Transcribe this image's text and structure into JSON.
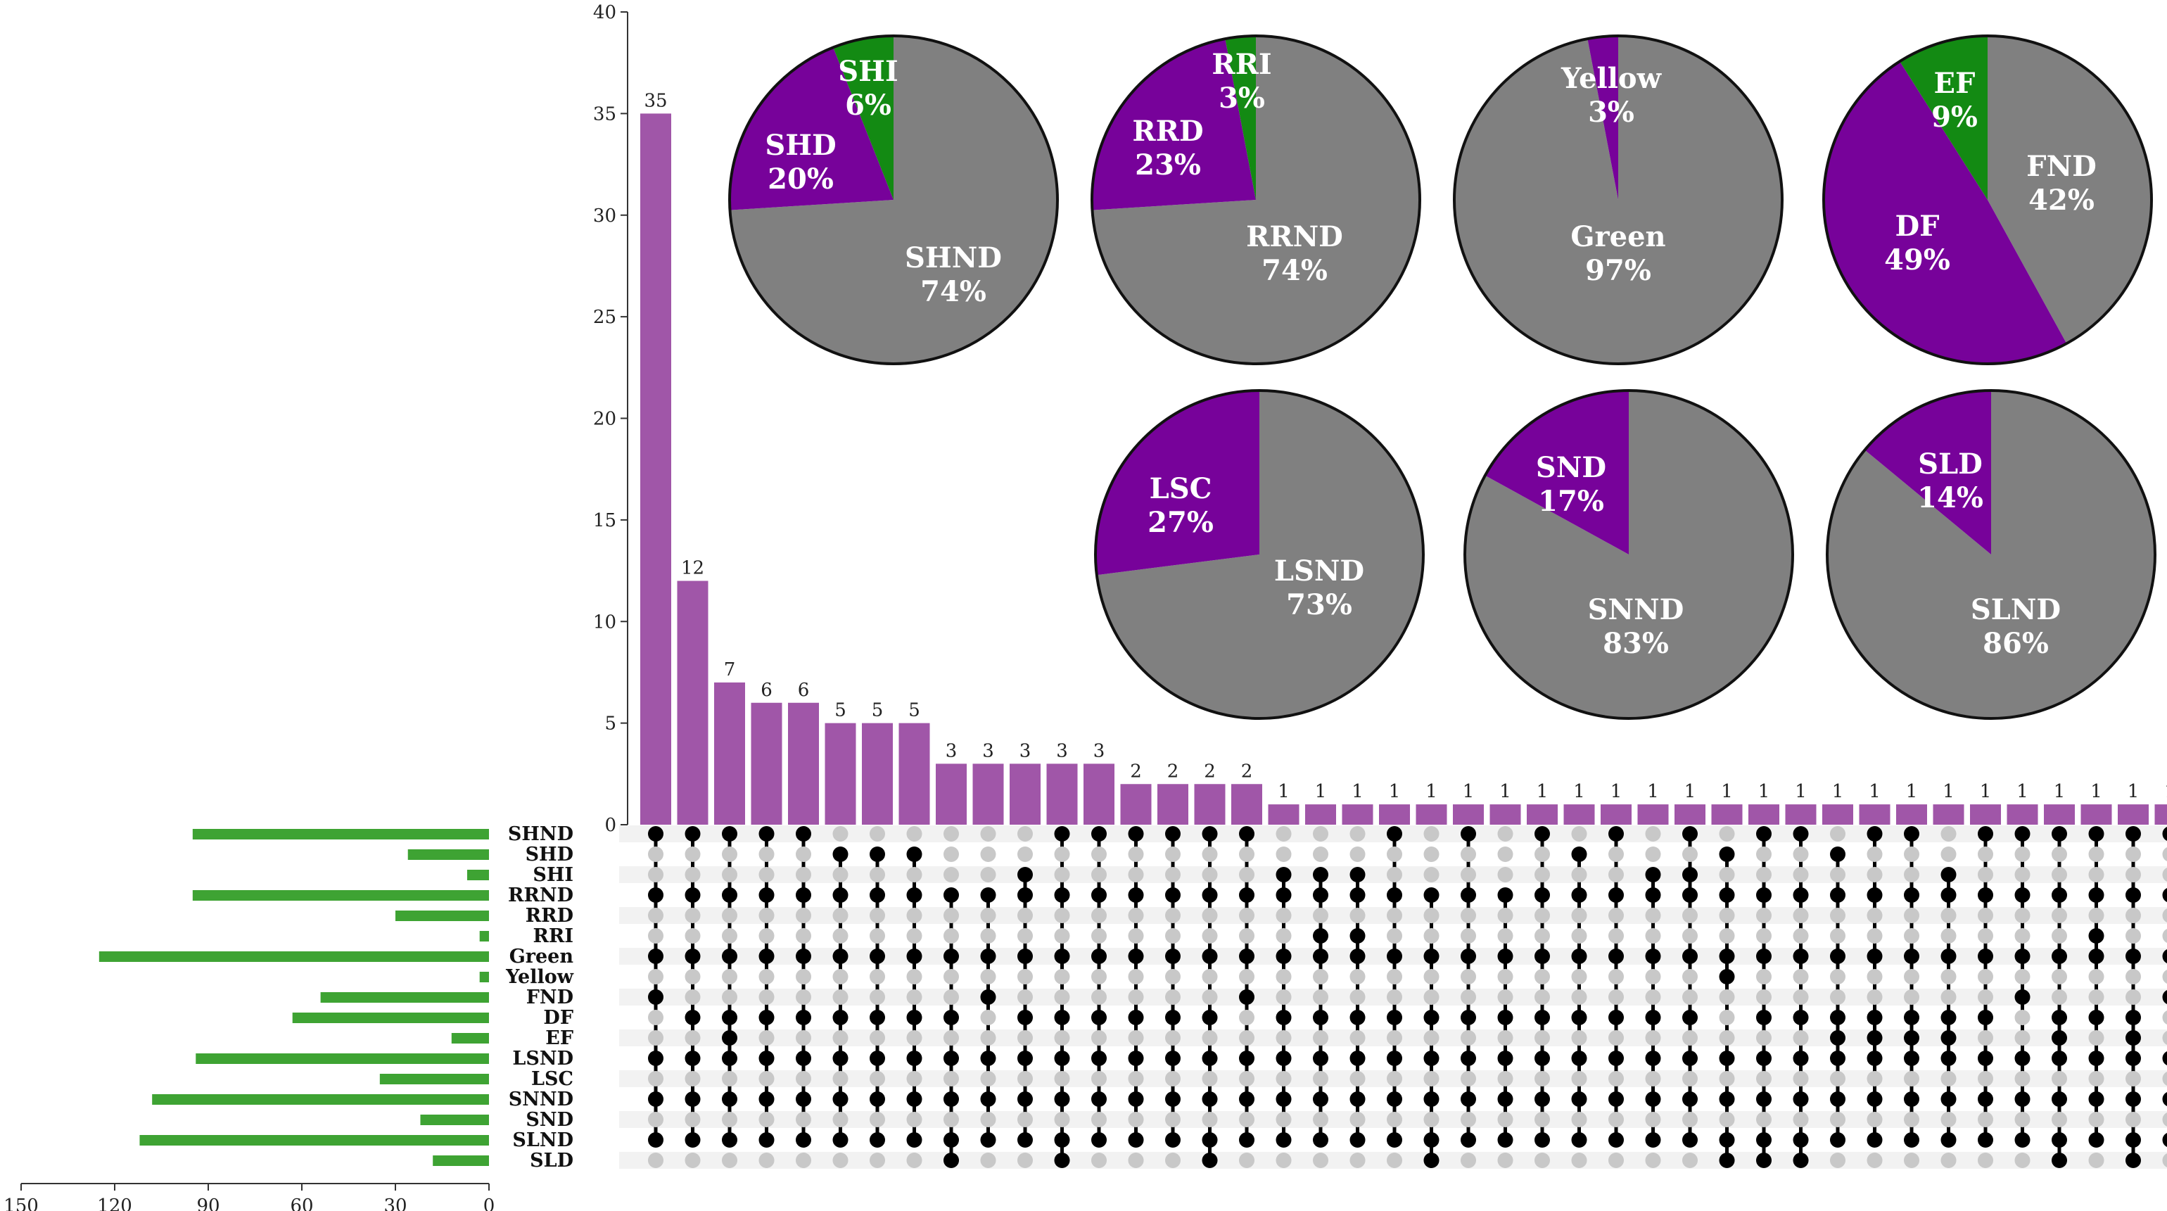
{
  "chart_data": {
    "type": "upset",
    "colors": {
      "bar": "#a056a8",
      "set_bar": "#3ea333",
      "dot_on": "#000000",
      "dot_off": "#c8c8c8",
      "stripe": "#f2f2f2",
      "pie_gray": "#808080",
      "pie_purple": "#77029a",
      "pie_green": "#138a13"
    },
    "intersections_axis": {
      "ylim": [
        0,
        40
      ],
      "ticks": [
        0,
        5,
        10,
        15,
        20,
        25,
        30,
        35,
        40
      ]
    },
    "intersection_sizes": [
      35,
      12,
      7,
      6,
      6,
      5,
      5,
      5,
      3,
      3,
      3,
      3,
      3,
      2,
      2,
      2,
      2,
      1,
      1,
      1,
      1,
      1,
      1,
      1,
      1,
      1,
      1,
      1,
      1,
      1,
      1,
      1,
      1,
      1,
      1,
      1,
      1,
      1,
      1,
      1,
      1,
      1
    ],
    "sets": [
      "SHND",
      "SHD",
      "SHI",
      "RRND",
      "RRD",
      "RRI",
      "Green",
      "Yellow",
      "FND",
      "DF",
      "EF",
      "LSND",
      "LSC",
      "SNND",
      "SND",
      "SLND",
      "SLD"
    ],
    "set_sizes": [
      95,
      26,
      7,
      95,
      30,
      3,
      125,
      3,
      54,
      63,
      12,
      94,
      35,
      108,
      22,
      112,
      18
    ],
    "set_size_axis": {
      "xlim": [
        150,
        0
      ],
      "ticks": [
        150,
        120,
        90,
        60,
        30,
        0
      ]
    },
    "matrix": [
      [
        1,
        1,
        1,
        1,
        1,
        0,
        0,
        0,
        0,
        0,
        0,
        1,
        1,
        1,
        1,
        1,
        1,
        0,
        0,
        0,
        1,
        0,
        1,
        0,
        1,
        0,
        1,
        0,
        1,
        0,
        1,
        1,
        0,
        1,
        1,
        0,
        1,
        1,
        1,
        1,
        1,
        1
      ],
      [
        0,
        0,
        0,
        0,
        0,
        1,
        1,
        1,
        0,
        0,
        0,
        0,
        0,
        0,
        0,
        0,
        0,
        0,
        0,
        0,
        0,
        0,
        0,
        0,
        0,
        1,
        0,
        0,
        0,
        1,
        0,
        0,
        1,
        0,
        0,
        0,
        0,
        0,
        0,
        0,
        0,
        0
      ],
      [
        0,
        0,
        0,
        0,
        0,
        0,
        0,
        0,
        0,
        0,
        1,
        0,
        0,
        0,
        0,
        0,
        0,
        1,
        1,
        1,
        0,
        0,
        0,
        0,
        0,
        0,
        0,
        1,
        1,
        0,
        0,
        0,
        0,
        0,
        0,
        1,
        0,
        0,
        0,
        0,
        0,
        0
      ],
      [
        1,
        1,
        1,
        1,
        1,
        1,
        1,
        1,
        1,
        1,
        1,
        1,
        1,
        1,
        1,
        1,
        1,
        1,
        1,
        1,
        1,
        1,
        1,
        1,
        1,
        1,
        1,
        1,
        1,
        1,
        1,
        1,
        1,
        1,
        1,
        1,
        1,
        1,
        1,
        1,
        1,
        1
      ],
      [
        0,
        0,
        0,
        0,
        0,
        0,
        0,
        0,
        0,
        0,
        0,
        0,
        0,
        0,
        0,
        0,
        0,
        0,
        0,
        0,
        0,
        0,
        0,
        0,
        0,
        0,
        0,
        0,
        0,
        0,
        0,
        0,
        0,
        0,
        0,
        0,
        0,
        0,
        0,
        0,
        0,
        0
      ],
      [
        0,
        0,
        0,
        0,
        0,
        0,
        0,
        0,
        0,
        0,
        0,
        0,
        0,
        0,
        0,
        0,
        0,
        0,
        1,
        1,
        0,
        0,
        0,
        0,
        0,
        0,
        0,
        0,
        0,
        0,
        0,
        0,
        0,
        0,
        0,
        0,
        0,
        0,
        0,
        1,
        0,
        0
      ],
      [
        1,
        1,
        1,
        1,
        1,
        1,
        1,
        1,
        1,
        1,
        1,
        1,
        1,
        1,
        1,
        1,
        1,
        1,
        1,
        1,
        1,
        1,
        1,
        1,
        1,
        1,
        1,
        1,
        1,
        1,
        1,
        1,
        1,
        1,
        1,
        1,
        1,
        1,
        1,
        1,
        1,
        1
      ],
      [
        0,
        0,
        0,
        0,
        0,
        0,
        0,
        0,
        0,
        0,
        0,
        0,
        0,
        0,
        0,
        0,
        0,
        0,
        0,
        0,
        0,
        0,
        0,
        0,
        0,
        0,
        0,
        0,
        0,
        1,
        0,
        0,
        0,
        0,
        0,
        0,
        0,
        0,
        0,
        0,
        0,
        0
      ],
      [
        1,
        0,
        0,
        0,
        0,
        0,
        0,
        0,
        0,
        1,
        0,
        0,
        0,
        0,
        0,
        0,
        1,
        0,
        0,
        0,
        0,
        0,
        0,
        0,
        0,
        0,
        0,
        0,
        0,
        0,
        0,
        0,
        0,
        0,
        0,
        0,
        0,
        1,
        0,
        0,
        0,
        1
      ],
      [
        0,
        1,
        1,
        1,
        1,
        1,
        1,
        1,
        1,
        0,
        1,
        1,
        1,
        1,
        1,
        1,
        0,
        1,
        1,
        1,
        1,
        1,
        1,
        1,
        1,
        1,
        1,
        1,
        1,
        0,
        1,
        1,
        1,
        1,
        1,
        1,
        1,
        0,
        1,
        1,
        1,
        0
      ],
      [
        0,
        0,
        1,
        0,
        0,
        0,
        0,
        0,
        0,
        0,
        0,
        0,
        0,
        0,
        0,
        0,
        0,
        0,
        0,
        0,
        0,
        0,
        0,
        0,
        0,
        0,
        0,
        0,
        0,
        0,
        0,
        0,
        1,
        1,
        1,
        1,
        0,
        0,
        1,
        0,
        1,
        0
      ],
      [
        1,
        1,
        1,
        1,
        1,
        1,
        1,
        1,
        1,
        1,
        1,
        1,
        1,
        1,
        1,
        1,
        1,
        1,
        1,
        1,
        1,
        1,
        1,
        1,
        1,
        1,
        1,
        1,
        1,
        1,
        1,
        1,
        1,
        1,
        1,
        1,
        1,
        1,
        1,
        1,
        1,
        1
      ],
      [
        0,
        0,
        0,
        0,
        0,
        0,
        0,
        0,
        0,
        0,
        0,
        0,
        0,
        0,
        0,
        0,
        0,
        0,
        0,
        0,
        0,
        0,
        0,
        0,
        0,
        0,
        0,
        0,
        0,
        0,
        0,
        0,
        0,
        0,
        0,
        0,
        0,
        0,
        0,
        0,
        0,
        0
      ],
      [
        1,
        1,
        1,
        1,
        1,
        1,
        1,
        1,
        1,
        1,
        1,
        1,
        1,
        1,
        1,
        1,
        1,
        1,
        1,
        1,
        1,
        1,
        1,
        1,
        1,
        1,
        1,
        1,
        1,
        1,
        1,
        1,
        1,
        1,
        1,
        1,
        1,
        1,
        1,
        1,
        1,
        1
      ],
      [
        0,
        0,
        0,
        0,
        0,
        0,
        0,
        0,
        0,
        0,
        0,
        0,
        0,
        0,
        0,
        0,
        0,
        0,
        0,
        0,
        0,
        0,
        0,
        0,
        0,
        0,
        0,
        0,
        0,
        0,
        0,
        0,
        0,
        0,
        0,
        0,
        0,
        0,
        0,
        0,
        0,
        0
      ],
      [
        1,
        1,
        1,
        1,
        1,
        1,
        1,
        1,
        1,
        1,
        1,
        1,
        1,
        1,
        1,
        1,
        1,
        1,
        1,
        1,
        1,
        1,
        1,
        1,
        1,
        1,
        1,
        1,
        1,
        1,
        1,
        1,
        1,
        1,
        1,
        1,
        1,
        1,
        1,
        1,
        1,
        1
      ],
      [
        0,
        0,
        0,
        0,
        0,
        0,
        0,
        0,
        1,
        0,
        0,
        1,
        0,
        0,
        0,
        1,
        0,
        0,
        0,
        0,
        0,
        1,
        0,
        0,
        0,
        0,
        0,
        0,
        0,
        1,
        1,
        1,
        0,
        0,
        0,
        0,
        0,
        0,
        1,
        0,
        1,
        0
      ]
    ],
    "pies": [
      {
        "slices": [
          {
            "label": "SHND",
            "value": 74,
            "color": "gray",
            "pct": "74%"
          },
          {
            "label": "SHD",
            "value": 20,
            "color": "purple",
            "pct": "20%"
          },
          {
            "label": "SHI",
            "value": 6,
            "color": "green",
            "pct": "6%"
          }
        ]
      },
      {
        "slices": [
          {
            "label": "RRND",
            "value": 74,
            "color": "gray",
            "pct": "74%"
          },
          {
            "label": "RRD",
            "value": 23,
            "color": "purple",
            "pct": "23%"
          },
          {
            "label": "RRI",
            "value": 3,
            "color": "green",
            "pct": "3%"
          }
        ]
      },
      {
        "slices": [
          {
            "label": "Green",
            "value": 97,
            "color": "gray",
            "pct": "97%"
          },
          {
            "label": "Yellow",
            "value": 3,
            "color": "purple",
            "pct": "3%"
          }
        ]
      },
      {
        "slices": [
          {
            "label": "FND",
            "value": 42,
            "color": "gray",
            "pct": "42%"
          },
          {
            "label": "DF",
            "value": 49,
            "color": "purple",
            "pct": "49%"
          },
          {
            "label": "EF",
            "value": 9,
            "color": "green",
            "pct": "9%"
          }
        ]
      },
      {
        "slices": [
          {
            "label": "LSND",
            "value": 73,
            "color": "gray",
            "pct": "73%"
          },
          {
            "label": "LSC",
            "value": 27,
            "color": "purple",
            "pct": "27%"
          }
        ]
      },
      {
        "slices": [
          {
            "label": "SNND",
            "value": 83,
            "color": "gray",
            "pct": "83%"
          },
          {
            "label": "SND",
            "value": 17,
            "color": "purple",
            "pct": "17%"
          }
        ]
      },
      {
        "slices": [
          {
            "label": "SLND",
            "value": 86,
            "color": "gray",
            "pct": "86%"
          },
          {
            "label": "SLD",
            "value": 14,
            "color": "purple",
            "pct": "14%"
          }
        ]
      }
    ]
  }
}
